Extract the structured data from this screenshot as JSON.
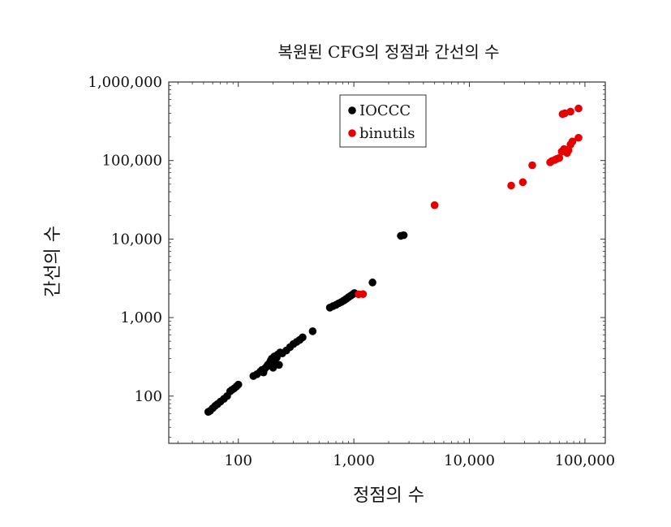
{
  "chart_data": {
    "type": "scatter",
    "title": "복원된 CFG의 정점과 간선의 수",
    "xlabel": "정점의 수",
    "ylabel": "간선의 수",
    "x_scale": "log",
    "y_scale": "log",
    "xlim": [
      25,
      150000
    ],
    "ylim": [
      25,
      1000000
    ],
    "x_ticks": [
      {
        "value": 100,
        "label": "100"
      },
      {
        "value": 1000,
        "label": "1,000"
      },
      {
        "value": 10000,
        "label": "10,000"
      },
      {
        "value": 100000,
        "label": "100,000"
      }
    ],
    "y_ticks": [
      {
        "value": 100,
        "label": "100"
      },
      {
        "value": 1000,
        "label": "1,000"
      },
      {
        "value": 10000,
        "label": "10,000"
      },
      {
        "value": 100000,
        "label": "100,000"
      },
      {
        "value": 1000000,
        "label": "1,000,000"
      }
    ],
    "legend_position": "top-center",
    "series": [
      {
        "name": "IOCCC",
        "color": "#000000",
        "points": [
          [
            55,
            63
          ],
          [
            57,
            65
          ],
          [
            60,
            70
          ],
          [
            63,
            75
          ],
          [
            66,
            79
          ],
          [
            70,
            85
          ],
          [
            75,
            92
          ],
          [
            80,
            100
          ],
          [
            85,
            115
          ],
          [
            88,
            120
          ],
          [
            92,
            125
          ],
          [
            96,
            132
          ],
          [
            100,
            140
          ],
          [
            135,
            180
          ],
          [
            145,
            190
          ],
          [
            155,
            205
          ],
          [
            160,
            215
          ],
          [
            165,
            200
          ],
          [
            170,
            225
          ],
          [
            175,
            235
          ],
          [
            180,
            250
          ],
          [
            185,
            260
          ],
          [
            190,
            280
          ],
          [
            195,
            300
          ],
          [
            200,
            230
          ],
          [
            205,
            320
          ],
          [
            210,
            260
          ],
          [
            215,
            310
          ],
          [
            220,
            340
          ],
          [
            225,
            250
          ],
          [
            230,
            360
          ],
          [
            240,
            350
          ],
          [
            260,
            380
          ],
          [
            280,
            420
          ],
          [
            300,
            460
          ],
          [
            320,
            490
          ],
          [
            340,
            520
          ],
          [
            360,
            560
          ],
          [
            440,
            670
          ],
          [
            620,
            1340
          ],
          [
            660,
            1400
          ],
          [
            700,
            1450
          ],
          [
            740,
            1520
          ],
          [
            780,
            1580
          ],
          [
            820,
            1650
          ],
          [
            860,
            1730
          ],
          [
            900,
            1820
          ],
          [
            940,
            1900
          ],
          [
            980,
            1980
          ],
          [
            1010,
            2050
          ],
          [
            1450,
            2800
          ],
          [
            2550,
            11000
          ],
          [
            2700,
            11200
          ]
        ]
      },
      {
        "name": "binutils",
        "color": "#e60000",
        "points": [
          [
            1100,
            1980
          ],
          [
            1200,
            1990
          ],
          [
            5000,
            27000
          ],
          [
            23000,
            48000
          ],
          [
            29000,
            53000
          ],
          [
            35000,
            87000
          ],
          [
            50000,
            95000
          ],
          [
            52000,
            99000
          ],
          [
            55000,
            102000
          ],
          [
            57000,
            105000
          ],
          [
            60000,
            108000
          ],
          [
            63000,
            130000
          ],
          [
            66000,
            140000
          ],
          [
            70000,
            125000
          ],
          [
            72000,
            135000
          ],
          [
            75000,
            160000
          ],
          [
            78000,
            175000
          ],
          [
            88000,
            195000
          ],
          [
            64000,
            390000
          ],
          [
            67000,
            400000
          ],
          [
            75000,
            420000
          ],
          [
            88000,
            460000
          ]
        ]
      }
    ]
  }
}
